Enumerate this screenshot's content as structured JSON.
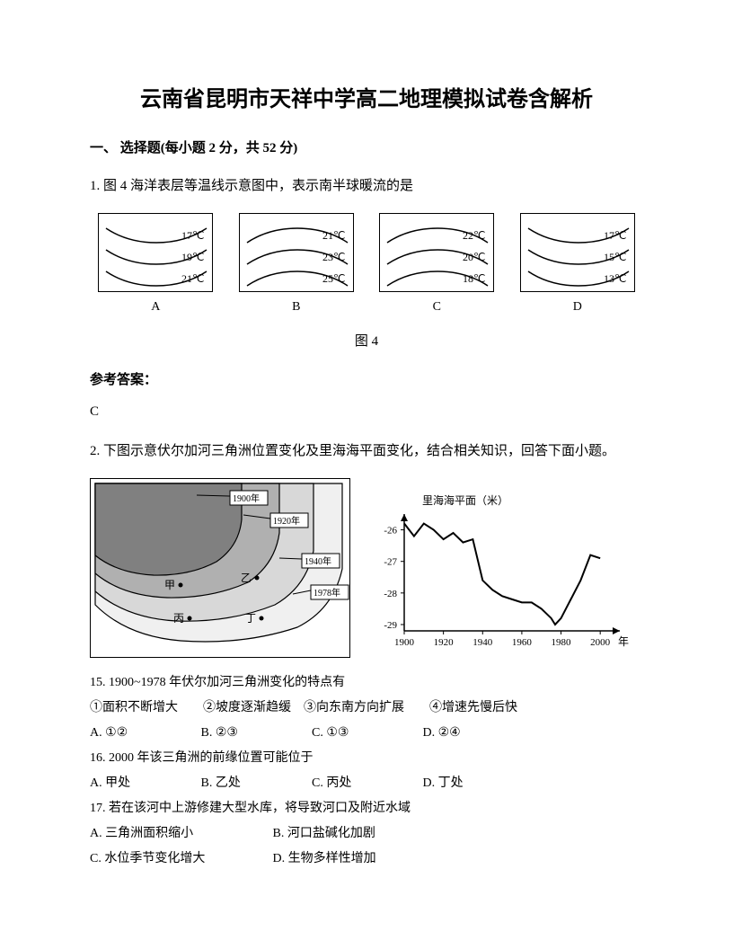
{
  "title": "云南省昆明市天祥中学高二地理模拟试卷含解析",
  "section1": "一、 选择题(每小题 2 分，共 52 分)",
  "q1": {
    "text": "1. 图 4 海洋表层等温线示意图中，表示南半球暖流的是",
    "diagrams": [
      {
        "label": "A",
        "temps": [
          "17℃",
          "19℃",
          "21℃"
        ],
        "direction": "down"
      },
      {
        "label": "B",
        "temps": [
          "21℃",
          "23℃",
          "25℃"
        ],
        "direction": "up"
      },
      {
        "label": "C",
        "temps": [
          "22℃",
          "20℃",
          "18℃"
        ],
        "direction": "up"
      },
      {
        "label": "D",
        "temps": [
          "17℃",
          "15℃",
          "13℃"
        ],
        "direction": "down"
      }
    ],
    "caption": "图 4",
    "answer_label": "参考答案：",
    "answer": "C"
  },
  "q2": {
    "text": "2. 下图示意伏尔加河三角洲位置变化及里海海平面变化，结合相关知识，回答下面小题。",
    "map": {
      "years": [
        "1900年",
        "1920年",
        "1940年",
        "1978年"
      ],
      "points": [
        "甲",
        "乙",
        "丙",
        "丁"
      ]
    },
    "chart": {
      "ylabel": "里海海平面（米）",
      "xlabel": "年份",
      "yticks": [
        -26,
        -27,
        -28,
        -29
      ],
      "xticks": [
        1900,
        1920,
        1940,
        1960,
        1980,
        2000
      ],
      "data": [
        [
          1900,
          -25.8
        ],
        [
          1905,
          -26.2
        ],
        [
          1910,
          -25.8
        ],
        [
          1915,
          -26.0
        ],
        [
          1920,
          -26.3
        ],
        [
          1925,
          -26.1
        ],
        [
          1930,
          -26.4
        ],
        [
          1935,
          -26.3
        ],
        [
          1940,
          -27.6
        ],
        [
          1945,
          -27.9
        ],
        [
          1950,
          -28.1
        ],
        [
          1955,
          -28.2
        ],
        [
          1960,
          -28.3
        ],
        [
          1965,
          -28.3
        ],
        [
          1970,
          -28.5
        ],
        [
          1975,
          -28.8
        ],
        [
          1977,
          -29.0
        ],
        [
          1980,
          -28.8
        ],
        [
          1985,
          -28.2
        ],
        [
          1990,
          -27.6
        ],
        [
          1995,
          -26.8
        ],
        [
          2000,
          -26.9
        ]
      ]
    },
    "sub15": {
      "stem": "15.  1900~1978 年伏尔加河三角洲变化的特点有",
      "items": "①面积不断增大　　②坡度逐渐趋缓　③向东南方向扩展　　④增速先慢后快",
      "opts": [
        "A. ①②",
        "B. ②③",
        "C. ①③",
        "D. ②④"
      ]
    },
    "sub16": {
      "stem": "16.  2000 年该三角洲的前缘位置可能位于",
      "opts": [
        "A. 甲处",
        "B. 乙处",
        "C. 丙处",
        "D. 丁处"
      ]
    },
    "sub17": {
      "stem": "17.  若在该河中上游修建大型水库，将导致河口及附近水域",
      "opts": [
        "A. 三角洲面积缩小",
        "B. 河口盐碱化加剧",
        "C. 水位季节变化增大",
        "D. 生物多样性增加"
      ]
    }
  }
}
